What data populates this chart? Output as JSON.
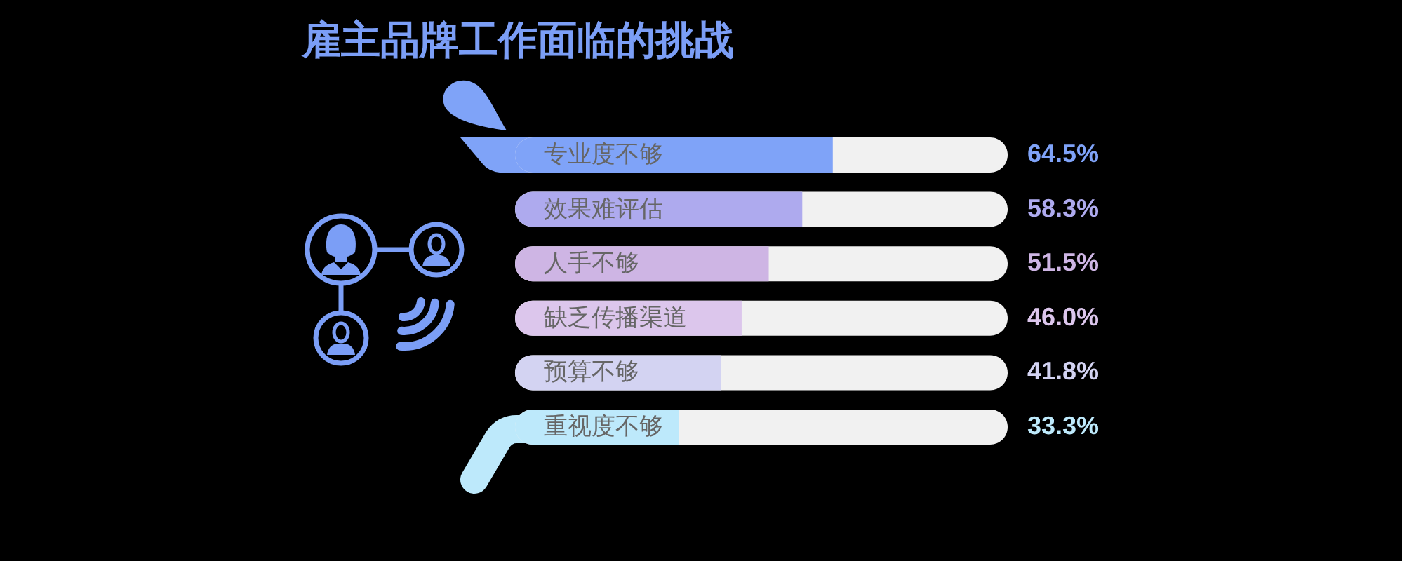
{
  "chart_data": {
    "type": "bar",
    "orientation": "horizontal",
    "title": "雇主品牌工作面临的挑战",
    "categories": [
      "专业度不够",
      "效果难评估",
      "人手不够",
      "缺乏传播渠道",
      "预算不够",
      "重视度不够"
    ],
    "values": [
      64.5,
      58.3,
      51.5,
      46.0,
      41.8,
      33.3
    ],
    "colors": [
      "#7fa3f8",
      "#aeaaee",
      "#ceb5e4",
      "#dcc6ec",
      "#d3d3f2",
      "#bde9fb"
    ],
    "value_labels": [
      "64.5%",
      "58.3%",
      "51.5%",
      "46.0%",
      "41.8%",
      "33.3%"
    ],
    "xlim": [
      0,
      100
    ],
    "tick_labels": "y"
  }
}
